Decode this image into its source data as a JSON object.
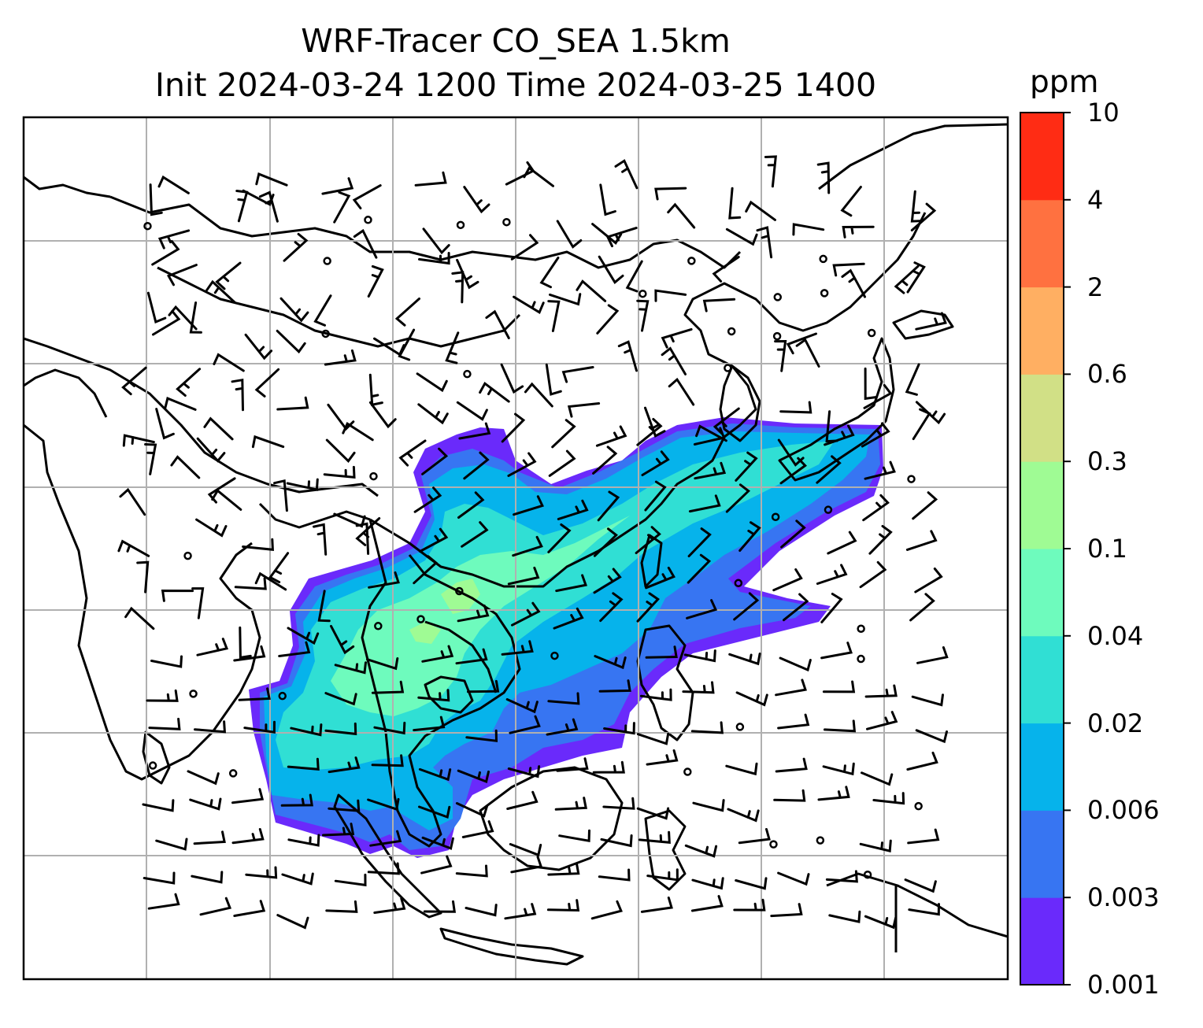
{
  "title": {
    "line1": "WRF-Tracer CO_SEA 1.5km",
    "line2": "Init 2024-03-24 1200 Time 2024-03-25 1400"
  },
  "colorbar": {
    "unit": "ppm",
    "levels": [
      "0.001",
      "0.003",
      "0.006",
      "0.02",
      "0.04",
      "0.1",
      "0.3",
      "0.6",
      "2",
      "4",
      "10"
    ],
    "colors": [
      "#6a2afb",
      "#3775f2",
      "#06b3eb",
      "#30dfd4",
      "#6efbbd",
      "#9ffb94",
      "#d1e086",
      "#ffaf62",
      "#ff7140",
      "#ff2c14"
    ]
  },
  "map": {
    "field": "CO tracer concentration",
    "overlay": "wind barbs",
    "gridlines": true,
    "coastlines": true
  }
}
